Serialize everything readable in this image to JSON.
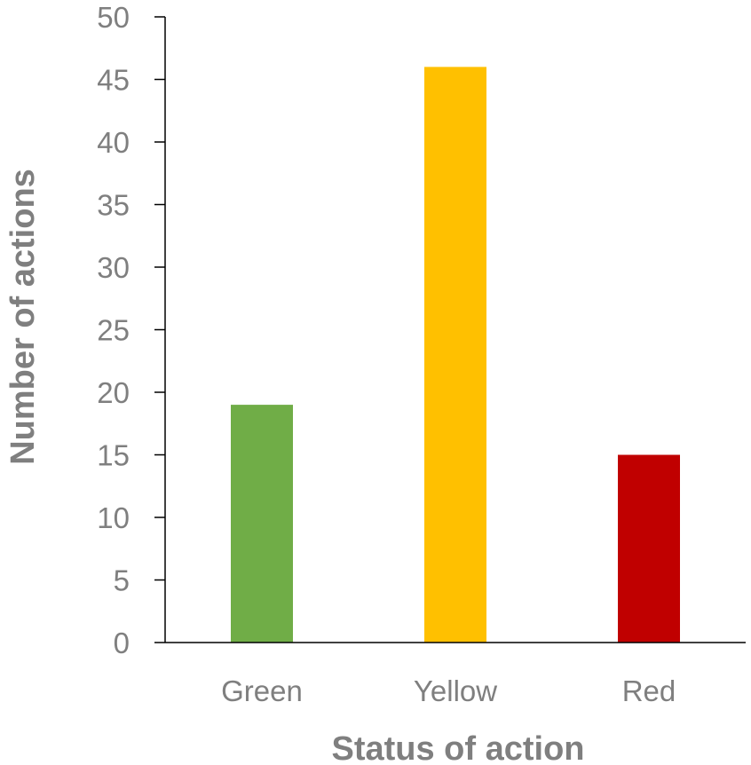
{
  "chart_data": {
    "type": "bar",
    "categories": [
      "Green",
      "Yellow",
      "Red"
    ],
    "values": [
      19,
      46,
      15
    ],
    "colors": [
      "#70ad47",
      "#ffc000",
      "#c00000"
    ],
    "title": "",
    "xlabel": "Status of action",
    "ylabel": "Number of actions",
    "ylim": [
      0,
      50
    ],
    "yticks": [
      0,
      5,
      10,
      15,
      20,
      25,
      30,
      35,
      40,
      45,
      50
    ],
    "grid": false,
    "legend": "none"
  }
}
